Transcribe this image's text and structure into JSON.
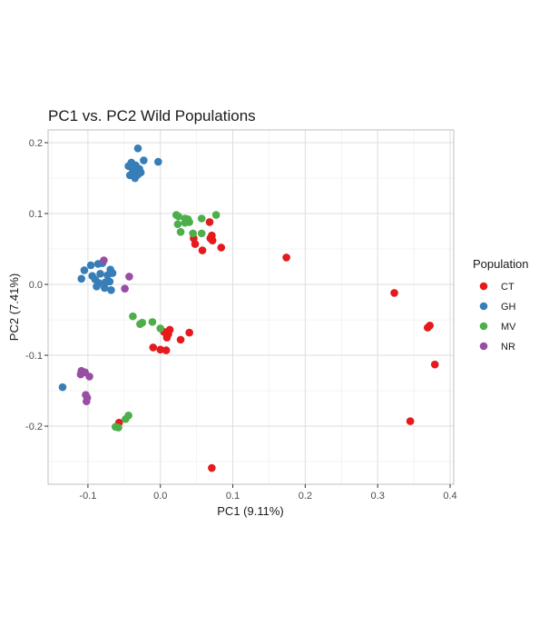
{
  "chart_data": {
    "type": "scatter",
    "title": "PC1 vs. PC2 Wild Populations",
    "xlabel": "PC1 (9.11%)",
    "ylabel": "PC2 (7.41%)",
    "xlim": [
      -0.155,
      0.405
    ],
    "ylim": [
      -0.282,
      0.218
    ],
    "x_ticks": [
      -0.1,
      0.0,
      0.1,
      0.2,
      0.3,
      0.4
    ],
    "x_tick_labels": [
      "-0.1",
      "0.0",
      "0.1",
      "0.2",
      "0.3",
      "0.4"
    ],
    "y_ticks": [
      -0.2,
      -0.1,
      0.0,
      0.1,
      0.2
    ],
    "y_tick_labels": [
      "-0.2",
      "-0.1",
      "0.0",
      "0.1",
      "0.2"
    ],
    "grid": true,
    "legend": {
      "title": "Population",
      "position": "right"
    },
    "series": [
      {
        "name": "CT",
        "color": "#e41a1c",
        "points": [
          [
            0.046,
            0.065
          ],
          [
            0.048,
            0.057
          ],
          [
            0.058,
            0.048
          ],
          [
            0.068,
            0.088
          ],
          [
            0.069,
            0.065
          ],
          [
            0.071,
            0.069
          ],
          [
            0.072,
            0.062
          ],
          [
            0.084,
            0.052
          ],
          [
            0.174,
            0.038
          ],
          [
            0.323,
            -0.012
          ],
          [
            0.369,
            -0.061
          ],
          [
            0.372,
            -0.058
          ],
          [
            0.379,
            -0.113
          ],
          [
            0.345,
            -0.193
          ],
          [
            0.071,
            -0.259
          ],
          [
            0.005,
            -0.067
          ],
          [
            0.011,
            -0.07
          ],
          [
            0.013,
            -0.064
          ],
          [
            0.009,
            -0.075
          ],
          [
            0.04,
            -0.068
          ],
          [
            0.028,
            -0.078
          ],
          [
            -0.01,
            -0.089
          ],
          [
            0.0,
            -0.092
          ],
          [
            0.008,
            -0.093
          ],
          [
            -0.057,
            -0.195
          ]
        ]
      },
      {
        "name": "GH",
        "color": "#377eb8",
        "points": [
          [
            -0.031,
            0.192
          ],
          [
            -0.023,
            0.175
          ],
          [
            -0.04,
            0.172
          ],
          [
            -0.034,
            0.168
          ],
          [
            -0.044,
            0.167
          ],
          [
            -0.029,
            0.163
          ],
          [
            -0.038,
            0.16
          ],
          [
            -0.027,
            0.158
          ],
          [
            -0.042,
            0.154
          ],
          [
            -0.035,
            0.15
          ],
          [
            -0.031,
            0.155
          ],
          [
            -0.003,
            0.173
          ],
          [
            -0.105,
            0.02
          ],
          [
            -0.096,
            0.027
          ],
          [
            -0.086,
            0.029
          ],
          [
            -0.08,
            0.03
          ],
          [
            -0.069,
            0.021
          ],
          [
            -0.066,
            0.016
          ],
          [
            -0.083,
            0.015
          ],
          [
            -0.073,
            0.013
          ],
          [
            -0.094,
            0.012
          ],
          [
            -0.09,
            0.007
          ],
          [
            -0.085,
            0.002
          ],
          [
            -0.076,
            0.003
          ],
          [
            -0.088,
            -0.003
          ],
          [
            -0.077,
            -0.005
          ],
          [
            -0.07,
            0.004
          ],
          [
            -0.068,
            -0.008
          ],
          [
            -0.109,
            0.008
          ],
          [
            -0.135,
            -0.145
          ]
        ]
      },
      {
        "name": "MV",
        "color": "#4daf4a",
        "points": [
          [
            0.022,
            0.098
          ],
          [
            0.025,
            0.096
          ],
          [
            0.034,
            0.093
          ],
          [
            0.038,
            0.092
          ],
          [
            0.057,
            0.093
          ],
          [
            0.077,
            0.098
          ],
          [
            0.024,
            0.085
          ],
          [
            0.034,
            0.087
          ],
          [
            0.04,
            0.088
          ],
          [
            0.045,
            0.072
          ],
          [
            0.057,
            0.072
          ],
          [
            0.028,
            0.074
          ],
          [
            -0.038,
            -0.045
          ],
          [
            -0.011,
            -0.053
          ],
          [
            -0.028,
            -0.056
          ],
          [
            -0.025,
            -0.054
          ],
          [
            0.0,
            -0.062
          ],
          [
            -0.048,
            -0.19
          ],
          [
            -0.044,
            -0.185
          ],
          [
            -0.058,
            -0.202
          ],
          [
            -0.062,
            -0.201
          ]
        ]
      },
      {
        "name": "NR",
        "color": "#984ea3",
        "points": [
          [
            -0.078,
            0.034
          ],
          [
            -0.043,
            0.011
          ],
          [
            -0.049,
            -0.006
          ],
          [
            -0.109,
            -0.122
          ],
          [
            -0.11,
            -0.127
          ],
          [
            -0.104,
            -0.124
          ],
          [
            -0.098,
            -0.13
          ],
          [
            -0.103,
            -0.156
          ],
          [
            -0.101,
            -0.16
          ],
          [
            -0.102,
            -0.165
          ]
        ]
      }
    ]
  }
}
